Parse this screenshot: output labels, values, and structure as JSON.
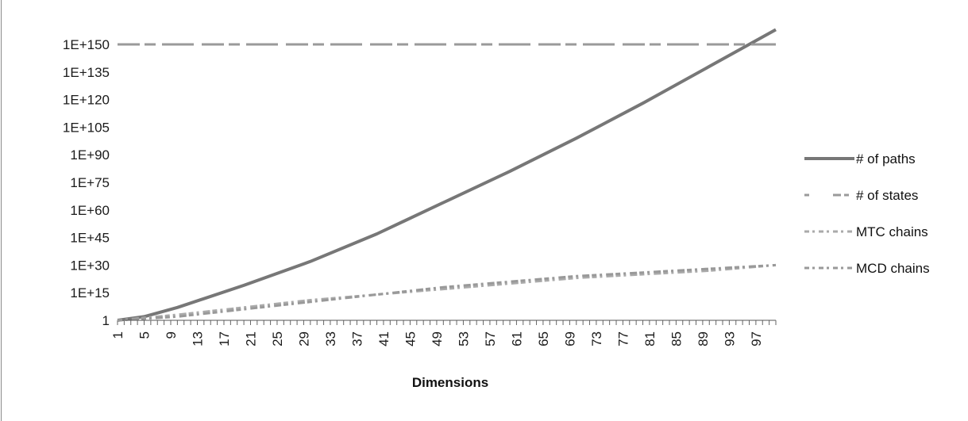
{
  "chart_data": {
    "type": "line",
    "xlabel": "Dimensions",
    "ylabel": "",
    "y_scale": "log",
    "y_tick_labels": [
      "1",
      "1E+15",
      "1E+30",
      "1E+45",
      "1E+60",
      "1E+75",
      "1E+90",
      "1E+105",
      "1E+120",
      "1E+135",
      "1E+150"
    ],
    "x_tick_labels": [
      "1",
      "5",
      "9",
      "13",
      "17",
      "21",
      "25",
      "29",
      "33",
      "37",
      "41",
      "45",
      "49",
      "53",
      "57",
      "61",
      "65",
      "69",
      "73",
      "77",
      "81",
      "85",
      "89",
      "93",
      "97"
    ],
    "x_range": [
      1,
      100
    ],
    "ylim_exponent": [
      0,
      160
    ],
    "grid": false,
    "legend_position": "right",
    "series": [
      {
        "name": "# of paths",
        "color": "#777777",
        "style": "solid",
        "x": [
          1,
          5,
          10,
          20,
          30,
          40,
          50,
          60,
          70,
          80,
          90,
          100
        ],
        "y_exponent": [
          0,
          2,
          7,
          19,
          32,
          47,
          64,
          81,
          99,
          118,
          138,
          158
        ]
      },
      {
        "name": "# of states",
        "color": "#9a9a9a",
        "style": "dashed",
        "x": [
          1,
          100
        ],
        "y_exponent": [
          150,
          150
        ]
      },
      {
        "name": "MTC chains",
        "color": "#aaaaaa",
        "style": "scatter-dash",
        "x": [
          1,
          10,
          20,
          30,
          40,
          50,
          60,
          70,
          80,
          90,
          100
        ],
        "y_exponent": [
          0,
          3,
          7,
          11,
          14,
          17,
          20,
          23,
          25,
          27,
          30
        ]
      },
      {
        "name": "MCD chains",
        "color": "#999999",
        "style": "scatter-dash",
        "x": [
          1,
          10,
          20,
          30,
          40,
          50,
          60,
          70,
          80,
          90,
          100
        ],
        "y_exponent": [
          0,
          2,
          6,
          10,
          14,
          18,
          21,
          24,
          26,
          28,
          30
        ]
      }
    ]
  }
}
